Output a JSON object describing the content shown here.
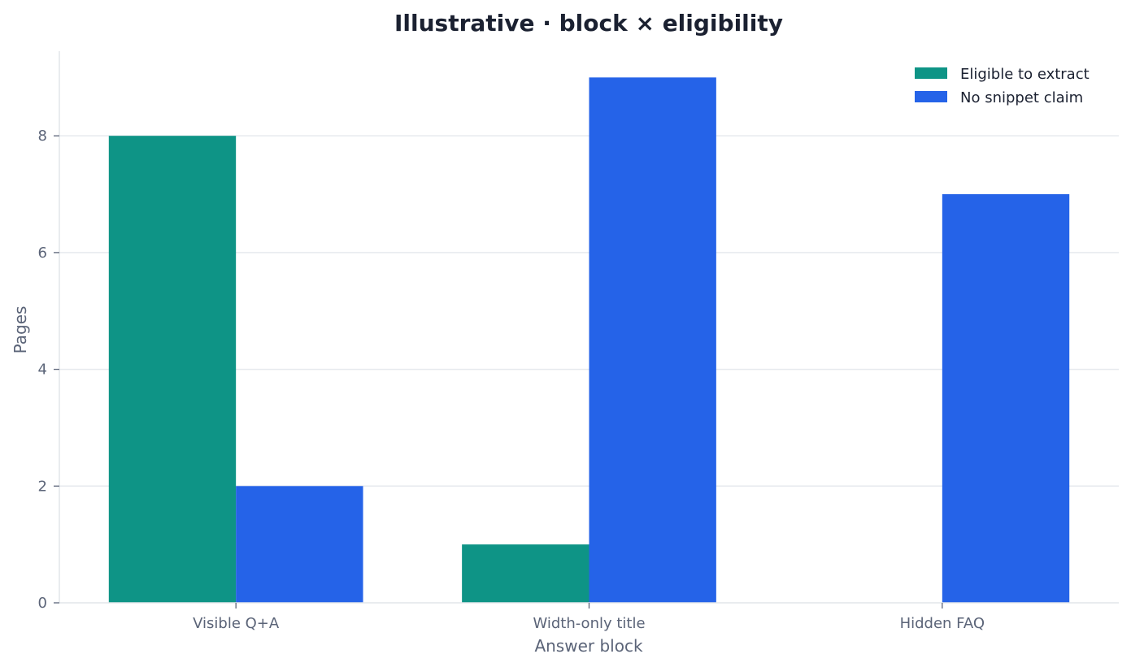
{
  "chart_data": {
    "type": "bar",
    "title": "Illustrative · block × eligibility",
    "xlabel": "Answer block",
    "ylabel": "Pages",
    "categories": [
      "Visible Q+A",
      "Width-only title",
      "Hidden FAQ"
    ],
    "series": [
      {
        "name": "Eligible to extract",
        "values": [
          8,
          1,
          0
        ],
        "color": "#0e9486"
      },
      {
        "name": "No snippet claim",
        "values": [
          2,
          9,
          7
        ],
        "color": "#2563e8"
      }
    ],
    "ylim": [
      0,
      9.45
    ],
    "yticks": [
      0,
      2,
      4,
      6,
      8
    ],
    "grid": true,
    "legend_position": "top-right"
  }
}
